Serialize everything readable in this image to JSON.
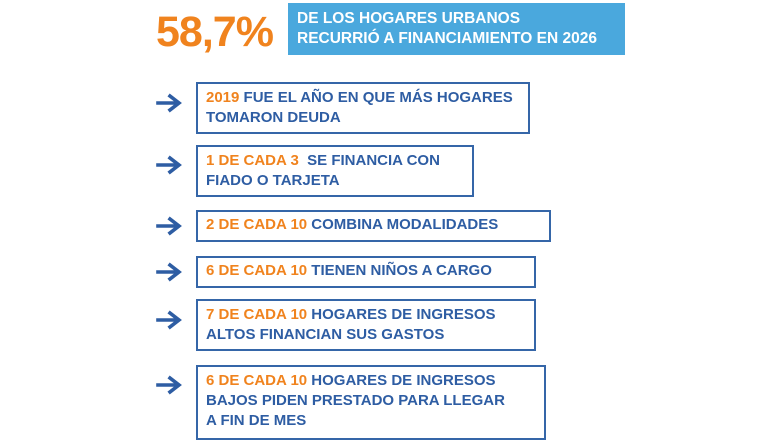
{
  "headline": {
    "percentage": "58,7%",
    "banner_line1": "DE LOS HOGARES URBANOS",
    "banner_line2": "RECURRIÓ A FINANCIAMIENTO EN 2026"
  },
  "colors": {
    "accent_orange": "#f0831e",
    "banner_blue": "#4aa8dd",
    "text_blue": "#2e5da3",
    "border_blue": "#3566a8"
  },
  "facts": [
    {
      "highlight": "2019",
      "line1": " FUE EL AÑO EN QUE MÁS HOGARES",
      "line2": "TOMARON DEUDA",
      "line3": ""
    },
    {
      "highlight": "1 DE CADA 3",
      "line1": "  SE FINANCIA CON",
      "line2": "FIADO O TARJETA",
      "line3": ""
    },
    {
      "highlight": "2 DE CADA 10",
      "line1": " COMBINA MODALIDADES",
      "line2": "",
      "line3": ""
    },
    {
      "highlight": "6 DE CADA 10",
      "line1": " TIENEN NIÑOS A CARGO",
      "line2": "",
      "line3": ""
    },
    {
      "highlight": "7 DE CADA 10",
      "line1": " HOGARES DE INGRESOS",
      "line2": "ALTOS FINANCIAN SUS GASTOS",
      "line3": ""
    },
    {
      "highlight": "6 DE CADA 10",
      "line1": " HOGARES DE INGRESOS",
      "line2": "BAJOS PIDEN PRESTADO PARA LLEGAR",
      "line3": "A FIN DE MES"
    }
  ],
  "icons": {
    "bullet": "arrow-right-icon"
  }
}
